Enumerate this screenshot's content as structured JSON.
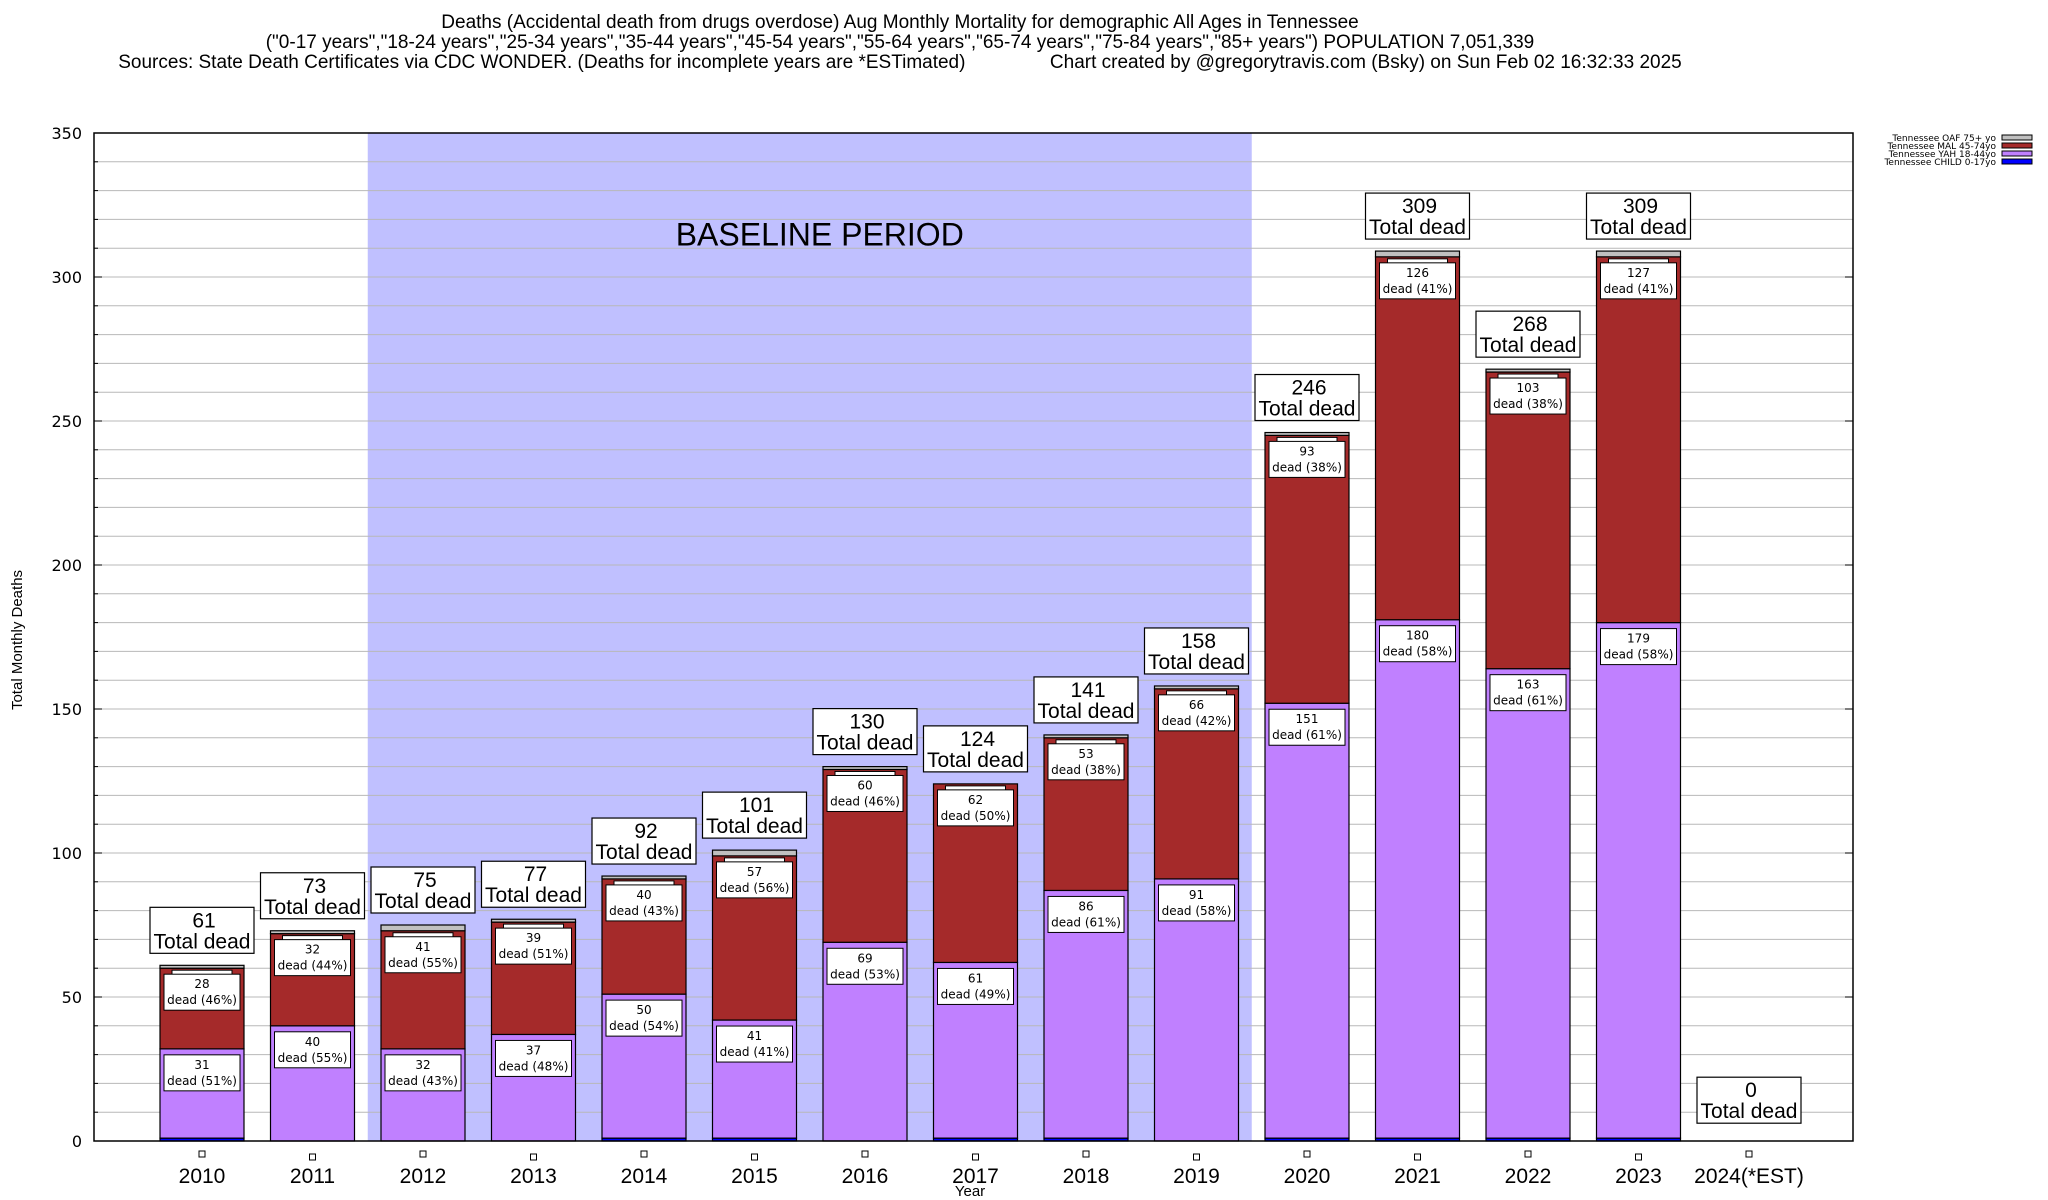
{
  "header": {
    "title_line1": "Deaths (Accidental death from drugs overdose) Aug Monthly Mortality for demographic All Ages in Tennessee",
    "title_line2": "(\"0-17 years\",\"18-24 years\",\"25-34 years\",\"35-44 years\",\"45-54 years\",\"55-64 years\",\"65-74 years\",\"75-84 years\",\"85+ years\") POPULATION 7,051,339",
    "title_line3": "Sources: State Death Certificates via CDC WONDER. (Deaths for incomplete years are *ESTimated)                Chart created by @gregorytravis.com (Bsky) on Sun Feb 02 16:32:33 2025"
  },
  "chart_data": {
    "type": "bar",
    "stacked": true,
    "title": "Deaths (Accidental death from drugs overdose) Aug Monthly Mortality for demographic All Ages in Tennessee",
    "xlabel": "Year",
    "ylabel": "Total Monthly Deaths",
    "ylim": [
      0,
      350
    ],
    "yticks": [
      0,
      50,
      100,
      150,
      200,
      250,
      300,
      350
    ],
    "minor_ytick_step": 10,
    "grid": true,
    "legend_position": "top-right-outside",
    "categories": [
      "2010",
      "2011",
      "2012",
      "2013",
      "2014",
      "2015",
      "2016",
      "2017",
      "2018",
      "2019",
      "2020",
      "2021",
      "2022",
      "2023",
      "2024(*EST)"
    ],
    "series": [
      {
        "name": "Tennessee CHILD 0-17yo",
        "color": "#0000ff",
        "values": [
          1,
          0,
          0,
          0,
          1,
          1,
          0,
          1,
          1,
          0,
          1,
          1,
          1,
          1,
          0
        ]
      },
      {
        "name": "Tennessee YAH 18-44yo",
        "color": "#c080ff",
        "values": [
          31,
          40,
          32,
          37,
          50,
          41,
          69,
          61,
          86,
          91,
          151,
          180,
          163,
          179,
          0
        ]
      },
      {
        "name": "Tennessee MAL 45-74yo",
        "color": "#a52a2a",
        "values": [
          28,
          32,
          41,
          39,
          40,
          57,
          60,
          62,
          53,
          66,
          93,
          126,
          103,
          127,
          0
        ]
      },
      {
        "name": "Tennessee OAF 75+ yo",
        "color": "#c0c0c0",
        "values": [
          1,
          1,
          2,
          1,
          1,
          2,
          1,
          0,
          1,
          1,
          1,
          2,
          1,
          2,
          0
        ]
      }
    ],
    "totals": [
      61,
      73,
      75,
      77,
      92,
      101,
      130,
      124,
      141,
      158,
      246,
      309,
      268,
      309,
      0
    ],
    "segment_labels": {
      "yah": [
        "31\ndead (51%)",
        "40\ndead (55%)",
        "32\ndead (43%)",
        "37\ndead (48%)",
        "50\ndead (54%)",
        "41\ndead (41%)",
        "69\ndead (53%)",
        "61\ndead (49%)",
        "86\ndead (61%)",
        "91\ndead (58%)",
        "151\ndead (61%)",
        "180\ndead (58%)",
        "163\ndead (61%)",
        "179\ndead (58%)",
        null
      ],
      "mal": [
        "28\ndead (46%)",
        "32\ndead (44%)",
        "41\ndead (55%)",
        "39\ndead (51%)",
        "40\ndead (43%)",
        "57\ndead (56%)",
        "60\ndead (46%)",
        "62\ndead (50%)",
        "53\ndead (38%)",
        "66\ndead (42%)",
        "93\ndead (38%)",
        "126\ndead (41%)",
        "103\ndead (38%)",
        "127\ndead (41%)",
        null
      ]
    },
    "total_label_suffix": "Total dead",
    "annotations": [
      {
        "text": "BASELINE PERIOD",
        "type": "shaded-region",
        "from": "2012",
        "to": "2019",
        "color": "#c0c0ff"
      }
    ]
  },
  "legend": {
    "items": [
      {
        "label": "Tennessee OAF 75+ yo",
        "color": "#c0c0c0"
      },
      {
        "label": "Tennessee MAL 45-74yo",
        "color": "#a52a2a"
      },
      {
        "label": "Tennessee YAH 18-44yo",
        "color": "#c080ff"
      },
      {
        "label": "Tennessee CHILD 0-17yo",
        "color": "#0000ff"
      }
    ]
  }
}
